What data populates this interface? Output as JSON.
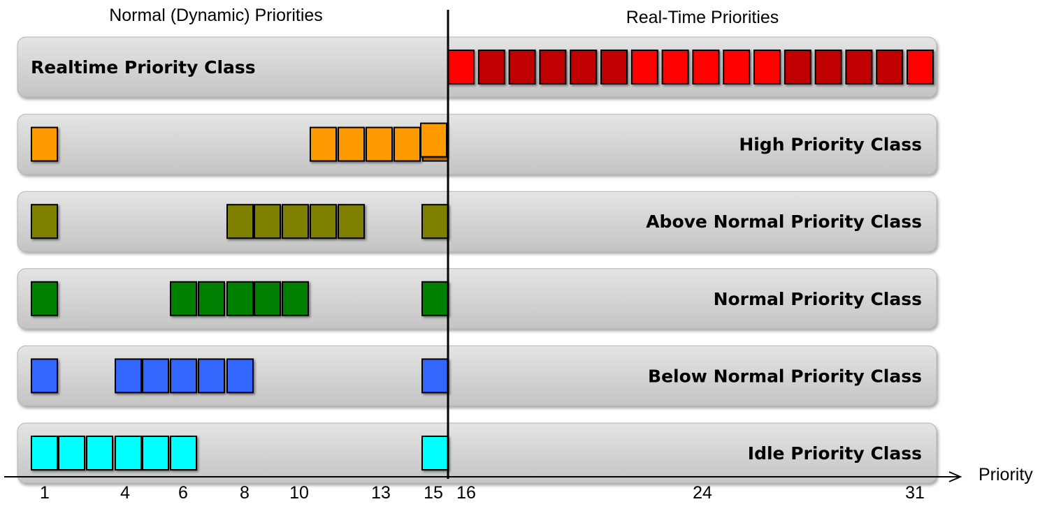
{
  "headers": {
    "left": "Normal (Dynamic) Priorities",
    "right": "Real-Time Priorities"
  },
  "axis_label": "Priority",
  "ticks": [
    {
      "value": 1,
      "label": "1"
    },
    {
      "value": 4,
      "label": "4"
    },
    {
      "value": 6,
      "label": "6"
    },
    {
      "value": 8,
      "label": "8"
    },
    {
      "value": 10,
      "label": "10"
    },
    {
      "value": 13,
      "label": "13"
    },
    {
      "value": 15,
      "label": "15"
    },
    {
      "value": 16,
      "label": "16"
    },
    {
      "value": 24,
      "label": "24"
    },
    {
      "value": 31,
      "label": "31"
    }
  ],
  "classes": [
    {
      "id": "realtime",
      "label": "Realtime Priority Class",
      "label_side": "left",
      "color": "#ff0000",
      "dark_color": "#c00000",
      "levels": [
        16,
        17,
        18,
        19,
        20,
        21,
        22,
        23,
        24,
        25,
        26,
        27,
        28,
        29,
        30,
        31
      ],
      "dark_levels": [
        17,
        18,
        19,
        20,
        21,
        27,
        28,
        29,
        30
      ]
    },
    {
      "id": "high",
      "label": "High Priority Class",
      "label_side": "right",
      "color": "#ff9900",
      "levels": [
        1,
        11,
        12,
        13,
        14,
        15
      ]
    },
    {
      "id": "above-normal",
      "label": "Above Normal Priority Class",
      "label_side": "right",
      "color": "#808000",
      "levels": [
        1,
        8,
        9,
        10,
        11,
        12,
        15
      ]
    },
    {
      "id": "normal",
      "label": "Normal Priority Class",
      "label_side": "right",
      "color": "#008000",
      "levels": [
        1,
        6,
        7,
        8,
        9,
        10,
        15
      ]
    },
    {
      "id": "below-normal",
      "label": "Below Normal Priority Class",
      "label_side": "right",
      "color": "#3366ff",
      "levels": [
        1,
        4,
        5,
        6,
        7,
        8,
        15
      ]
    },
    {
      "id": "idle",
      "label": "Idle Priority Class",
      "label_side": "right",
      "color": "#00ffff",
      "levels": [
        1,
        2,
        3,
        4,
        5,
        6,
        15
      ]
    }
  ]
}
